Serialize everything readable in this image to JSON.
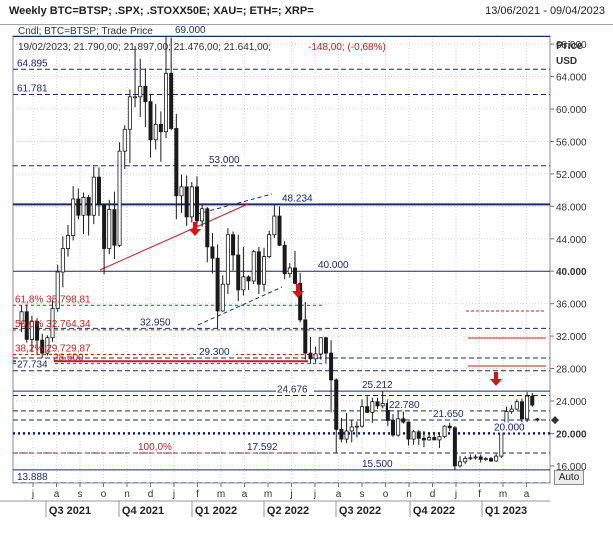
{
  "header": {
    "title": "Weekly BTC=BTSP; .SPX; .STOXX50E; XAU=; ETH=; XRP=",
    "date_range": "13/06/2021 - 09/04/2023"
  },
  "auto_label": "Auto",
  "chart_data": {
    "type": "candlestick",
    "legend_series": "Cndl; BTC=BTSP; Trade Price",
    "ohlc_readout": "19/02/2023; 21.790,00; 21.897,00; 21.476,00; 21.641,00;",
    "change_readout": "-148,00; (-0,68%)",
    "ylabel": "Price",
    "yunit": "USD",
    "ylim": [
      13888,
      69000
    ],
    "yticks": [
      "16.000",
      "20.000",
      "24.000",
      "28.000",
      "32.000",
      "36.000",
      "40.000",
      "44.000",
      "48.000",
      "52.000",
      "56.000",
      "60.000",
      "64.000",
      "68.000"
    ],
    "last_value": 21641,
    "x_ticks": [
      "j",
      "a",
      "s",
      "o",
      "n",
      "d",
      "j",
      "f",
      "m",
      "a",
      "m",
      "j",
      "j",
      "a",
      "s",
      "o",
      "n",
      "d",
      "j",
      "f",
      "m",
      "a"
    ],
    "quarters": [
      "Q3 2021",
      "Q4 2021",
      "Q1 2022",
      "Q2 2022",
      "Q3 2022",
      "Q4 2022",
      "Q1 2023"
    ],
    "levels": [
      {
        "label": "69.000",
        "value": 69000,
        "style": "solid-bold",
        "color": "#1b2a6b"
      },
      {
        "label": "64.895",
        "value": 64895,
        "style": "dashed",
        "color": "#1b2a6b"
      },
      {
        "label": "61.781",
        "value": 61781,
        "style": "dashed",
        "color": "#1b2a6b"
      },
      {
        "label": "53.000",
        "value": 53000,
        "style": "dashed",
        "color": "#1b2a6b"
      },
      {
        "label": "48.234",
        "value": 48234,
        "style": "solid-bold",
        "color": "#1b2a6b"
      },
      {
        "label": "40.000",
        "value": 40000,
        "style": "solid",
        "color": "#1b2a6b"
      },
      {
        "label": "32.950",
        "value": 32950,
        "style": "dashed",
        "color": "#1b2a6b"
      },
      {
        "label": "29.300",
        "value": 29300,
        "style": "dashed",
        "color": "#1b2a6b"
      },
      {
        "label": "27.734",
        "value": 27734,
        "style": "dashed",
        "color": "#1b2a6b"
      },
      {
        "label": "25.212",
        "value": 25212,
        "style": "solid",
        "color": "#1b2a6b"
      },
      {
        "label": "24.676",
        "value": 24676,
        "style": "dashed",
        "color": "#1b2a6b"
      },
      {
        "label": "22.780",
        "value": 22780,
        "style": "dashed",
        "color": "#1b2a6b"
      },
      {
        "label": "21.650",
        "value": 21650,
        "style": "dashed",
        "color": "#1b2a6b"
      },
      {
        "label": "20.000",
        "value": 20000,
        "style": "dotted-bold",
        "color": "#0b1a8c"
      },
      {
        "label": "17.592",
        "value": 17592,
        "style": "dashed",
        "color": "#1b2a6b"
      },
      {
        "label": "15.500",
        "value": 15500,
        "style": "solid",
        "color": "#1b2a6b"
      },
      {
        "label": "13.888",
        "value": 13888,
        "style": "dashed",
        "color": "#1b2a6b"
      }
    ],
    "fib_levels": [
      {
        "label": "61,8% 35.798,81",
        "value": 35798.81
      },
      {
        "label": "50,0% 32.764,34",
        "value": 32764.34
      },
      {
        "label": "38,2% 29.729,87",
        "value": 29729.87
      },
      {
        "label": "28.600",
        "value": 28600
      },
      {
        "label": "100,0%",
        "value": 17592
      }
    ],
    "candles": [
      [
        33500,
        35800,
        32500,
        35000
      ],
      [
        35000,
        35900,
        31200,
        31600
      ],
      [
        31600,
        34500,
        30000,
        33800
      ],
      [
        33800,
        34200,
        29700,
        31500
      ],
      [
        31500,
        32300,
        29300,
        29900
      ],
      [
        29900,
        32100,
        29600,
        31800
      ],
      [
        31800,
        36500,
        31300,
        35400
      ],
      [
        35400,
        40800,
        35000,
        39900
      ],
      [
        39900,
        44300,
        38000,
        42800
      ],
      [
        42800,
        45700,
        41800,
        44400
      ],
      [
        44400,
        50500,
        43800,
        48900
      ],
      [
        48900,
        50200,
        46400,
        46900
      ],
      [
        46900,
        49700,
        44600,
        49100
      ],
      [
        49100,
        49400,
        44400,
        46900
      ],
      [
        46900,
        52900,
        45800,
        51600
      ],
      [
        51600,
        52800,
        46800,
        48200
      ],
      [
        48200,
        48300,
        39600,
        42800
      ],
      [
        42800,
        48800,
        42100,
        47600
      ],
      [
        47600,
        49800,
        41500,
        43200
      ],
      [
        43200,
        55900,
        43000,
        54800
      ],
      [
        54800,
        58000,
        52600,
        57500
      ],
      [
        57500,
        62400,
        53300,
        61500
      ],
      [
        61500,
        67800,
        60200,
        61500
      ],
      [
        61500,
        66200,
        59000,
        62800
      ],
      [
        62800,
        65000,
        57800,
        60900
      ],
      [
        60900,
        61800,
        54000,
        56200
      ],
      [
        56200,
        60600,
        55000,
        58100
      ],
      [
        58100,
        59700,
        53500,
        57200
      ],
      [
        57200,
        69000,
        56400,
        64400
      ],
      [
        64400,
        68800,
        57400,
        57600
      ],
      [
        57600,
        59400,
        46400,
        49300
      ],
      [
        49300,
        51900,
        47200,
        50400
      ],
      [
        50400,
        51800,
        45600,
        46700
      ],
      [
        46700,
        51000,
        46000,
        50400
      ],
      [
        50400,
        51700,
        45600,
        46200
      ],
      [
        46200,
        48200,
        45500,
        47700
      ],
      [
        47700,
        47900,
        41100,
        43000
      ],
      [
        43000,
        44700,
        39700,
        41600
      ],
      [
        41600,
        43300,
        32950,
        35100
      ],
      [
        35100,
        39500,
        35000,
        38400
      ],
      [
        38400,
        45300,
        37200,
        44500
      ],
      [
        44500,
        44900,
        40100,
        42000
      ],
      [
        42000,
        44500,
        36300,
        37700
      ],
      [
        37700,
        43000,
        37000,
        39300
      ],
      [
        39300,
        39500,
        37700,
        38800
      ],
      [
        38800,
        42600,
        38400,
        42400
      ],
      [
        42400,
        43000,
        37200,
        38400
      ],
      [
        38400,
        42900,
        37500,
        41800
      ],
      [
        41800,
        45000,
        41600,
        44500
      ],
      [
        44500,
        48200,
        44100,
        46800
      ],
      [
        46800,
        48000,
        43100,
        43200
      ],
      [
        43200,
        43700,
        39000,
        39700
      ],
      [
        39700,
        41000,
        39200,
        40400
      ],
      [
        40400,
        42500,
        38400,
        38500
      ],
      [
        38500,
        39800,
        33700,
        34000
      ],
      [
        34000,
        36200,
        29100,
        29900
      ],
      [
        29900,
        31900,
        28600,
        29200
      ],
      [
        29200,
        30700,
        28700,
        29800
      ],
      [
        29800,
        31800,
        29100,
        31800
      ],
      [
        31800,
        31900,
        28600,
        29900
      ],
      [
        29900,
        31500,
        22600,
        26600
      ],
      [
        26600,
        26800,
        17592,
        20500
      ],
      [
        20500,
        21900,
        18900,
        19300
      ],
      [
        19300,
        22500,
        18800,
        20300
      ],
      [
        20300,
        21600,
        18900,
        20800
      ],
      [
        20800,
        21500,
        19500,
        20900
      ],
      [
        20900,
        24200,
        20700,
        23300
      ],
      [
        23300,
        24600,
        22500,
        22600
      ],
      [
        22600,
        24400,
        21300,
        23900
      ],
      [
        23900,
        24400,
        23000,
        23400
      ],
      [
        23400,
        25212,
        23100,
        23700
      ],
      [
        23700,
        24200,
        20900,
        21600
      ],
      [
        21600,
        22400,
        19600,
        19800
      ],
      [
        19800,
        22800,
        19600,
        21800
      ],
      [
        21800,
        22700,
        21200,
        21400
      ],
      [
        21400,
        21500,
        18500,
        19300
      ],
      [
        19300,
        20400,
        18600,
        20200
      ],
      [
        20200,
        20400,
        18600,
        19400
      ],
      [
        19400,
        20300,
        18300,
        19200
      ],
      [
        19200,
        20100,
        19100,
        19500
      ],
      [
        19500,
        20200,
        19300,
        19200
      ],
      [
        19200,
        20000,
        18200,
        19600
      ],
      [
        19600,
        21000,
        19400,
        20900
      ],
      [
        20900,
        21300,
        20300,
        20700
      ],
      [
        20700,
        20900,
        15500,
        16000
      ],
      [
        16000,
        17200,
        15800,
        16500
      ],
      [
        16500,
        17200,
        16200,
        16900
      ],
      [
        16900,
        17400,
        16700,
        17000
      ],
      [
        17000,
        17400,
        16800,
        17100
      ],
      [
        17100,
        17400,
        16400,
        16800
      ],
      [
        16800,
        17100,
        16600,
        16900
      ],
      [
        16900,
        17100,
        16500,
        16600
      ],
      [
        16600,
        17500,
        16500,
        17200
      ],
      [
        17200,
        21300,
        17000,
        20900
      ],
      [
        20900,
        23300,
        20500,
        22700
      ],
      [
        22700,
        23500,
        22400,
        23000
      ],
      [
        23000,
        24200,
        22900,
        23900
      ],
      [
        23900,
        24300,
        21400,
        21800
      ],
      [
        21800,
        25100,
        21400,
        24600
      ],
      [
        24600,
        25000,
        23300,
        23500
      ],
      [
        21790,
        21897,
        21476,
        21641
      ]
    ]
  }
}
